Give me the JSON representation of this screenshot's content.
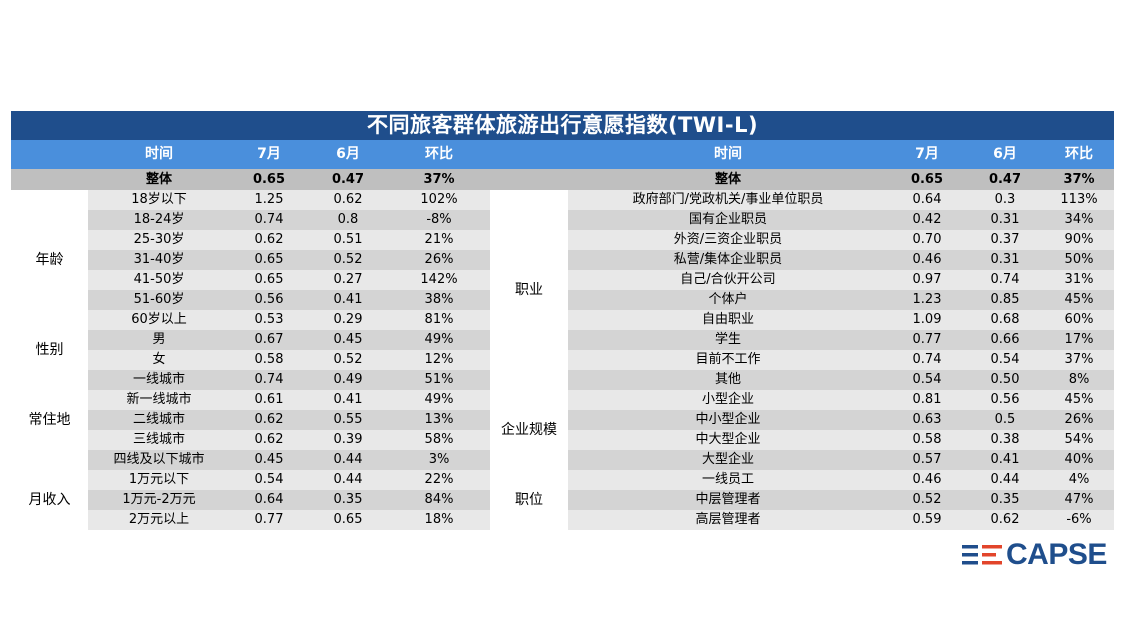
{
  "title": "不同旅客群体旅游出行意愿指数(TWI-L)",
  "headers": {
    "left": [
      "时间",
      "7月",
      "6月",
      "环比"
    ],
    "right": [
      "时间",
      "7月",
      "6月",
      "环比"
    ]
  },
  "total": {
    "left": [
      "整体",
      "0.65",
      "0.47",
      "37%"
    ],
    "right": [
      "整体",
      "0.65",
      "0.47",
      "37%"
    ]
  },
  "groups_left": [
    {
      "name": "年龄",
      "rows": [
        [
          "18岁以下",
          "1.25",
          "0.62",
          "102%"
        ],
        [
          "18-24岁",
          "0.74",
          "0.8",
          "-8%"
        ],
        [
          "25-30岁",
          "0.62",
          "0.51",
          "21%"
        ],
        [
          "31-40岁",
          "0.65",
          "0.52",
          "26%"
        ],
        [
          "41-50岁",
          "0.65",
          "0.27",
          "142%"
        ],
        [
          "51-60岁",
          "0.56",
          "0.41",
          "38%"
        ],
        [
          "60岁以上",
          "0.53",
          "0.29",
          "81%"
        ]
      ]
    },
    {
      "name": "性别",
      "rows": [
        [
          "男",
          "0.67",
          "0.45",
          "49%"
        ],
        [
          "女",
          "0.58",
          "0.52",
          "12%"
        ]
      ]
    },
    {
      "name": "常住地",
      "rows": [
        [
          "一线城市",
          "0.74",
          "0.49",
          "51%"
        ],
        [
          "新一线城市",
          "0.61",
          "0.41",
          "49%"
        ],
        [
          "二线城市",
          "0.62",
          "0.55",
          "13%"
        ],
        [
          "三线城市",
          "0.62",
          "0.39",
          "58%"
        ],
        [
          "四线及以下城市",
          "0.45",
          "0.44",
          "3%"
        ]
      ]
    },
    {
      "name": "月收入",
      "rows": [
        [
          "1万元以下",
          "0.54",
          "0.44",
          "22%"
        ],
        [
          "1万元-2万元",
          "0.64",
          "0.35",
          "84%"
        ],
        [
          "2万元以上",
          "0.77",
          "0.65",
          "18%"
        ]
      ]
    }
  ],
  "groups_right": [
    {
      "name": "职业",
      "rows": [
        [
          "政府部门/党政机关/事业单位职员",
          "0.64",
          "0.3",
          "113%"
        ],
        [
          "国有企业职员",
          "0.42",
          "0.31",
          "34%"
        ],
        [
          "外资/三资企业职员",
          "0.70",
          "0.37",
          "90%"
        ],
        [
          "私营/集体企业职员",
          "0.46",
          "0.31",
          "50%"
        ],
        [
          "自己/合伙开公司",
          "0.97",
          "0.74",
          "31%"
        ],
        [
          "个体户",
          "1.23",
          "0.85",
          "45%"
        ],
        [
          "自由职业",
          "1.09",
          "0.68",
          "60%"
        ],
        [
          "学生",
          "0.77",
          "0.66",
          "17%"
        ],
        [
          "目前不工作",
          "0.74",
          "0.54",
          "37%"
        ],
        [
          "其他",
          "0.54",
          "0.50",
          "8%"
        ]
      ]
    },
    {
      "name": "企业规模",
      "rows": [
        [
          "小型企业",
          "0.81",
          "0.56",
          "45%"
        ],
        [
          "中小型企业",
          "0.63",
          "0.5",
          "26%"
        ],
        [
          "中大型企业",
          "0.58",
          "0.38",
          "54%"
        ],
        [
          "大型企业",
          "0.57",
          "0.41",
          "40%"
        ]
      ]
    },
    {
      "name": "职位",
      "rows": [
        [
          "一线员工",
          "0.46",
          "0.44",
          "4%"
        ],
        [
          "中层管理者",
          "0.52",
          "0.35",
          "47%"
        ],
        [
          "高层管理者",
          "0.59",
          "0.62",
          "-6%"
        ]
      ]
    }
  ],
  "logo": {
    "text": "CAPSE",
    "color": "#1f4e8c",
    "accent": "#e2452b"
  }
}
